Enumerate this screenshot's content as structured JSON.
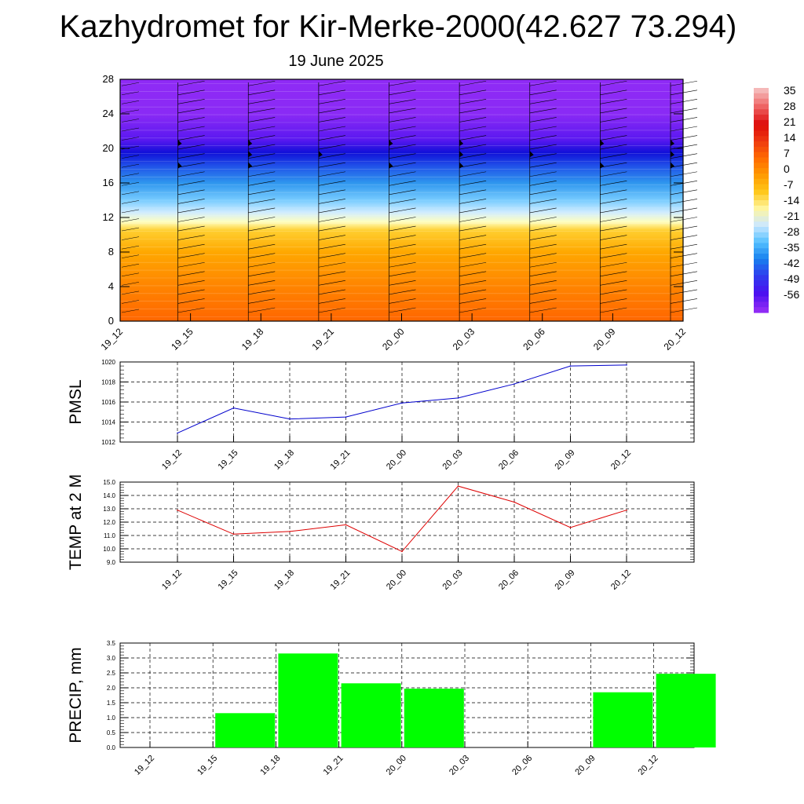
{
  "header": {
    "title": "Kazhydromet for Kir-Merke-2000(42.627 73.294)",
    "date": "19 June 2025"
  },
  "colors": {
    "pmsl_line": "#0000cc",
    "temp_line": "#dd0000",
    "precip_bar": "#00ff00"
  },
  "chart_data": [
    {
      "type": "heatmap",
      "name": "cross-section",
      "x": [
        "19_12",
        "19_15",
        "19_18",
        "19_21",
        "20_00",
        "20_03",
        "20_06",
        "20_09",
        "20_12"
      ],
      "y_ticks": [
        0,
        4,
        8,
        12,
        16,
        20,
        24,
        28
      ],
      "ylim": [
        0,
        28
      ],
      "color_scale": {
        "labels": [
          "35",
          "28",
          "21",
          "14",
          "7",
          "0",
          "-7",
          "-14",
          "-21",
          "-28",
          "-35",
          "-42",
          "-49",
          "-56"
        ],
        "colors": [
          "#f5b8b8",
          "#ee6060",
          "#dd0a0a",
          "#ee3a10",
          "#ff6a00",
          "#ff9a00",
          "#ffc71a",
          "#fff6a0",
          "#cce8ff",
          "#55c0ff",
          "#1880ee",
          "#2f3cee",
          "#4a10f0",
          "#8f2bf5"
        ]
      },
      "profile": [
        {
          "h": 0,
          "color": "#ff6600"
        },
        {
          "h": 4,
          "color": "#ff8400"
        },
        {
          "h": 8,
          "color": "#ffa800"
        },
        {
          "h": 10.5,
          "color": "#ffcf30"
        },
        {
          "h": 11.5,
          "color": "#ffffc0"
        },
        {
          "h": 12.6,
          "color": "#d0ecff"
        },
        {
          "h": 14,
          "color": "#78ccff"
        },
        {
          "h": 16,
          "color": "#2e96ee"
        },
        {
          "h": 18,
          "color": "#2050e8"
        },
        {
          "h": 19.5,
          "color": "#1010d8"
        },
        {
          "h": 21,
          "color": "#5a18f0"
        },
        {
          "h": 24,
          "color": "#8a2af5"
        },
        {
          "h": 28,
          "color": "#8f2bf5"
        }
      ]
    },
    {
      "type": "line",
      "name": "PMSL",
      "ylabel": "PMSL",
      "categories": [
        "19_12",
        "19_15",
        "19_18",
        "19_21",
        "20_00",
        "20_03",
        "20_06",
        "20_09",
        "20_12"
      ],
      "values": [
        1012.9,
        1015.4,
        1014.3,
        1014.5,
        1015.9,
        1016.4,
        1017.8,
        1019.6,
        1019.7
      ],
      "ylim": [
        1012,
        1020
      ],
      "yticks": [
        "1012",
        "1014",
        "1016",
        "1018",
        "1020"
      ],
      "grid": true
    },
    {
      "type": "line",
      "name": "TEMP at 2 M",
      "ylabel": "TEMP at 2 M",
      "categories": [
        "19_12",
        "19_15",
        "19_18",
        "19_21",
        "20_00",
        "20_03",
        "20_06",
        "20_09",
        "20_12"
      ],
      "values": [
        12.9,
        11.1,
        11.3,
        11.8,
        9.8,
        14.7,
        13.5,
        11.6,
        12.9
      ],
      "ylim": [
        9.0,
        15.0
      ],
      "yticks": [
        "9.0",
        "10.0",
        "11.0",
        "12.0",
        "13.0",
        "14.0",
        "15.0"
      ],
      "grid": true
    },
    {
      "type": "bar",
      "name": "PRECIP, mm",
      "ylabel": "PRECIP, mm",
      "categories": [
        "19_12",
        "19_15",
        "19_18",
        "19_21",
        "20_00",
        "20_03",
        "20_06",
        "20_09",
        "20_12"
      ],
      "values": [
        0,
        1.15,
        3.15,
        2.15,
        1.97,
        0,
        0,
        1.85,
        2.47
      ],
      "ylim": [
        0,
        3.5
      ],
      "yticks": [
        "0.0",
        "0.5",
        "1.0",
        "1.5",
        "2.0",
        "2.5",
        "3.0",
        "3.5"
      ],
      "grid": true
    }
  ]
}
